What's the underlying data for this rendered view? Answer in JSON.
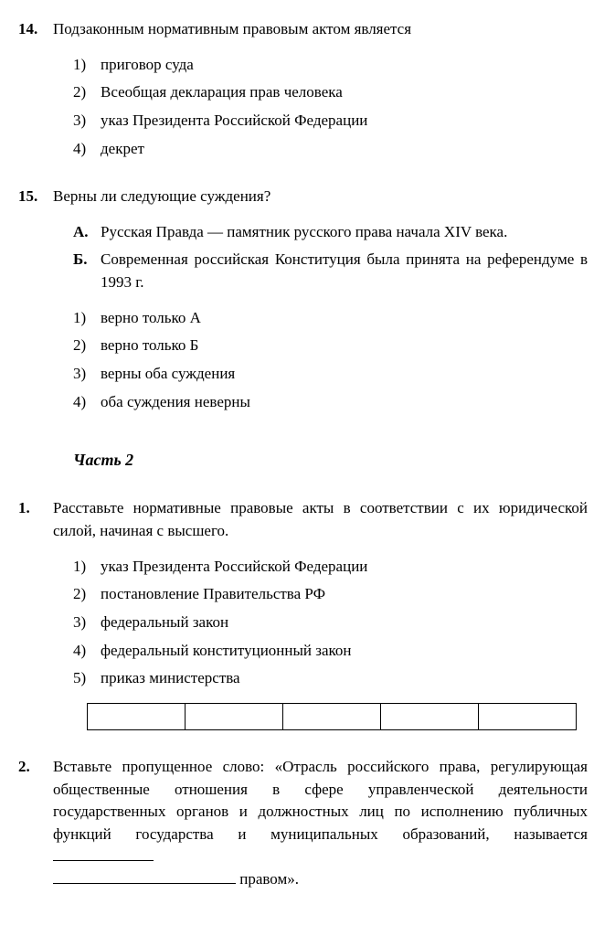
{
  "q14": {
    "num": "14.",
    "text": "Подзаконным нормативным правовым актом является",
    "options": [
      {
        "n": "1)",
        "t": "приговор суда"
      },
      {
        "n": "2)",
        "t": "Всеобщая декларация прав человека"
      },
      {
        "n": "3)",
        "t": "указ Президента Российской Федерации"
      },
      {
        "n": "4)",
        "t": "декрет"
      }
    ]
  },
  "q15": {
    "num": "15.",
    "text": "Верны ли следующие суждения?",
    "statements": [
      {
        "label": "А.",
        "text": "Русская Правда — памятник русского права начала XIV века."
      },
      {
        "label": "Б.",
        "text": "Современная российская Конституция была принята на референдуме в 1993 г."
      }
    ],
    "options": [
      {
        "n": "1)",
        "t": "верно только А"
      },
      {
        "n": "2)",
        "t": "верно только Б"
      },
      {
        "n": "3)",
        "t": "верны оба суждения"
      },
      {
        "n": "4)",
        "t": "оба суждения неверны"
      }
    ]
  },
  "part2": {
    "title": "Часть 2"
  },
  "p2q1": {
    "num": "1.",
    "text": "Расставьте нормативные правовые акты в соответствии с их юридической силой, начиная с высшего.",
    "options": [
      {
        "n": "1)",
        "t": "указ Президента Российской Федерации"
      },
      {
        "n": "2)",
        "t": "постановление Правительства РФ"
      },
      {
        "n": "3)",
        "t": "федеральный закон"
      },
      {
        "n": "4)",
        "t": "федеральный конституционный закон"
      },
      {
        "n": "5)",
        "t": "приказ министерства"
      }
    ],
    "cells": 5
  },
  "p2q2": {
    "num": "2.",
    "text_before": "Вставьте пропущенное слово: «Отрасль российского права, регулирующая общественные отношения в сфере управленческой деятельности государственных органов и должностных лиц по исполнению публичных функций государства и муниципальных образований, называется ",
    "text_after": " правом»."
  }
}
